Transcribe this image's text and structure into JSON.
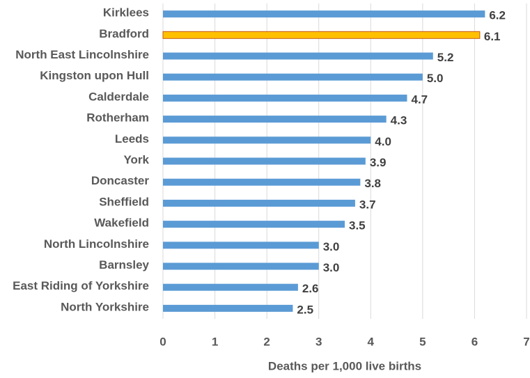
{
  "chart_data": {
    "type": "hbar",
    "categories": [
      "Kirklees",
      "Bradford",
      "North East Lincolnshire",
      "Kingston upon Hull",
      "Calderdale",
      "Rotherham",
      "Leeds",
      "York",
      "Doncaster",
      "Sheffield",
      "Wakefield",
      "North Lincolnshire",
      "Barnsley",
      "East Riding of Yorkshire",
      "North Yorkshire"
    ],
    "values": [
      6.2,
      6.1,
      5.2,
      5.0,
      4.7,
      4.3,
      4.0,
      3.9,
      3.8,
      3.7,
      3.5,
      3.0,
      3.0,
      2.6,
      2.5
    ],
    "value_labels": [
      "6.2",
      "6.1",
      "5.2",
      "5.0",
      "4.7",
      "4.3",
      "4.0",
      "3.9",
      "3.8",
      "3.7",
      "3.5",
      "3.0",
      "3.0",
      "2.6",
      "2.5"
    ],
    "colors": [
      "#5b9bd5",
      "#ffc000",
      "#5b9bd5",
      "#5b9bd5",
      "#5b9bd5",
      "#5b9bd5",
      "#5b9bd5",
      "#5b9bd5",
      "#5b9bd5",
      "#5b9bd5",
      "#5b9bd5",
      "#5b9bd5",
      "#5b9bd5",
      "#5b9bd5",
      "#5b9bd5"
    ],
    "xlabel": "Deaths per 1,000 live births",
    "xlim": [
      0,
      7
    ],
    "xticks": [
      0,
      1,
      2,
      3,
      4,
      5,
      6,
      7
    ],
    "grid": true
  }
}
